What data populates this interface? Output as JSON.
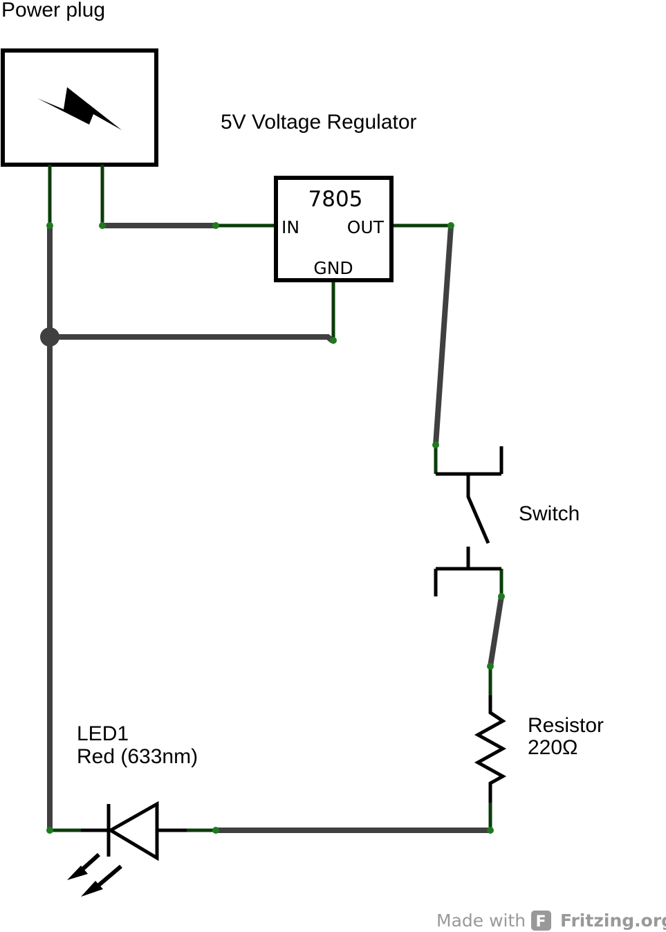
{
  "labels": {
    "power_plug": "Power plug",
    "regulator_title": "5V Voltage Regulator",
    "regulator_part": "7805",
    "pin_in": "IN",
    "pin_out": "OUT",
    "pin_gnd": "GND",
    "switch": "Switch",
    "resistor_name": "Resistor",
    "resistor_value": "220Ω",
    "led_name": "LED1",
    "led_color": "Red (633nm)"
  },
  "watermark": {
    "made_with": "Made with",
    "brand": "Fritzing.org",
    "logo_letter": "F"
  },
  "colors": {
    "wire": "#404040",
    "pin_leg": "#0b3d0b",
    "endpoint": "#1f7a1f",
    "symbol": "#000000",
    "watermark": "#999999"
  }
}
